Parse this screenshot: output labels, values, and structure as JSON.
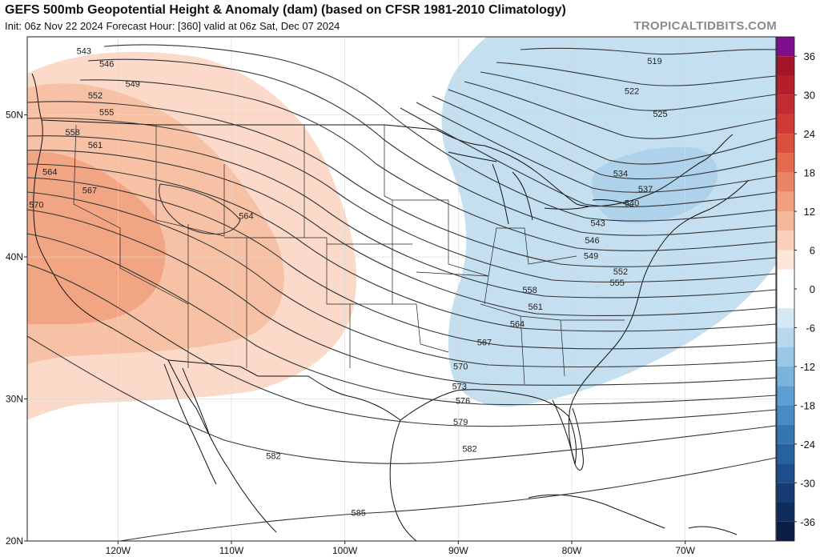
{
  "header": {
    "title": "GEFS 500mb Geopotential Height & Anomaly (dam) (based on CFSR 1981-2010 Climatology)",
    "subtitle": "Init: 06z Nov 22 2024   Forecast Hour: [360]   valid at 06z Sat, Dec 07 2024",
    "credit": "TROPICALTIDBITS.COM"
  },
  "map": {
    "lon_range": [
      -128,
      -62
    ],
    "lat_range": [
      20,
      55.5
    ],
    "lat_ticks": [
      {
        "label": "50N",
        "lat": 50
      },
      {
        "label": "40N",
        "lat": 40
      },
      {
        "label": "30N",
        "lat": 30
      },
      {
        "label": "20N",
        "lat": 20
      }
    ],
    "lon_ticks": [
      {
        "label": "120W",
        "lon": -120
      },
      {
        "label": "110W",
        "lon": -110
      },
      {
        "label": "100W",
        "lon": -100
      },
      {
        "label": "90W",
        "lon": -90
      },
      {
        "label": "80W",
        "lon": -80
      },
      {
        "label": "70W",
        "lon": -70
      }
    ],
    "contour_labels": [
      {
        "text": "543",
        "lon": -123.0,
        "lat": 54.5
      },
      {
        "text": "546",
        "lon": -121.0,
        "lat": 53.6
      },
      {
        "text": "549",
        "lon": -118.7,
        "lat": 52.2
      },
      {
        "text": "552",
        "lon": -122.0,
        "lat": 51.4
      },
      {
        "text": "555",
        "lon": -121.0,
        "lat": 50.2
      },
      {
        "text": "558",
        "lon": -124.0,
        "lat": 48.8
      },
      {
        "text": "561",
        "lon": -122.0,
        "lat": 47.9
      },
      {
        "text": "564",
        "lon": -126.0,
        "lat": 46.0
      },
      {
        "text": "567",
        "lon": -122.5,
        "lat": 44.7
      },
      {
        "text": "570",
        "lon": -127.2,
        "lat": 43.7
      },
      {
        "text": "564",
        "lon": -108.7,
        "lat": 42.9
      },
      {
        "text": "519",
        "lon": -72.7,
        "lat": 53.8
      },
      {
        "text": "522",
        "lon": -74.7,
        "lat": 51.7
      },
      {
        "text": "525",
        "lon": -72.2,
        "lat": 50.1
      },
      {
        "text": "534",
        "lon": -75.7,
        "lat": 45.9
      },
      {
        "text": "537",
        "lon": -73.5,
        "lat": 44.8
      },
      {
        "text": "540",
        "lon": -74.7,
        "lat": 43.8
      },
      {
        "text": "543",
        "lon": -77.7,
        "lat": 42.4
      },
      {
        "text": "546",
        "lon": -78.2,
        "lat": 41.2
      },
      {
        "text": "549",
        "lon": -78.3,
        "lat": 40.1
      },
      {
        "text": "552",
        "lon": -75.7,
        "lat": 39.0
      },
      {
        "text": "555",
        "lon": -76.0,
        "lat": 38.2
      },
      {
        "text": "558",
        "lon": -83.7,
        "lat": 37.7
      },
      {
        "text": "561",
        "lon": -83.2,
        "lat": 36.5
      },
      {
        "text": "564",
        "lon": -84.8,
        "lat": 35.3
      },
      {
        "text": "567",
        "lon": -87.7,
        "lat": 34.0
      },
      {
        "text": "570",
        "lon": -89.8,
        "lat": 32.3
      },
      {
        "text": "573",
        "lon": -89.9,
        "lat": 30.9
      },
      {
        "text": "576",
        "lon": -89.6,
        "lat": 29.9
      },
      {
        "text": "579",
        "lon": -89.8,
        "lat": 28.4
      },
      {
        "text": "582",
        "lon": -89.0,
        "lat": 26.5
      },
      {
        "text": "582",
        "lon": -106.3,
        "lat": 26.0
      },
      {
        "text": "585",
        "lon": -98.8,
        "lat": 22.0
      }
    ]
  },
  "colorbar": {
    "labels": [
      {
        "text": "36",
        "value": 36
      },
      {
        "text": "30",
        "value": 30
      },
      {
        "text": "24",
        "value": 24
      },
      {
        "text": "18",
        "value": 18
      },
      {
        "text": "12",
        "value": 12
      },
      {
        "text": "6",
        "value": 6
      },
      {
        "text": "0",
        "value": 0
      },
      {
        "text": "-6",
        "value": -6
      },
      {
        "text": "-12",
        "value": -12
      },
      {
        "text": "-18",
        "value": -18
      },
      {
        "text": "-24",
        "value": -24
      },
      {
        "text": "-30",
        "value": -30
      },
      {
        "text": "-36",
        "value": -36
      }
    ],
    "colors": [
      {
        "from": 36,
        "to": 39,
        "color": "#7f0e8c"
      },
      {
        "from": 33,
        "to": 36,
        "color": "#a3162a"
      },
      {
        "from": 30,
        "to": 33,
        "color": "#b51f2c"
      },
      {
        "from": 27,
        "to": 30,
        "color": "#c22b30"
      },
      {
        "from": 24,
        "to": 27,
        "color": "#cf3a36"
      },
      {
        "from": 21,
        "to": 24,
        "color": "#d9503f"
      },
      {
        "from": 18,
        "to": 21,
        "color": "#e16a4f"
      },
      {
        "from": 15,
        "to": 18,
        "color": "#e98566"
      },
      {
        "from": 12,
        "to": 15,
        "color": "#f0a080"
      },
      {
        "from": 9,
        "to": 12,
        "color": "#f5b89c"
      },
      {
        "from": 6,
        "to": 9,
        "color": "#f9d0bb"
      },
      {
        "from": 3,
        "to": 6,
        "color": "#fce6d9"
      },
      {
        "from": -3,
        "to": 3,
        "color": "#ffffff"
      },
      {
        "from": -6,
        "to": -3,
        "color": "#d5e8f4"
      },
      {
        "from": -9,
        "to": -6,
        "color": "#b8d8ee"
      },
      {
        "from": -12,
        "to": -9,
        "color": "#9ac7e6"
      },
      {
        "from": -15,
        "to": -12,
        "color": "#7ab3dc"
      },
      {
        "from": -18,
        "to": -15,
        "color": "#5d9fd1"
      },
      {
        "from": -21,
        "to": -18,
        "color": "#478ac4"
      },
      {
        "from": -24,
        "to": -21,
        "color": "#3575b3"
      },
      {
        "from": -27,
        "to": -24,
        "color": "#2761a0"
      },
      {
        "from": -30,
        "to": -27,
        "color": "#1d4d8a"
      },
      {
        "from": -33,
        "to": -30,
        "color": "#163b72"
      },
      {
        "from": -36,
        "to": -33,
        "color": "#0f2b5b"
      },
      {
        "from": -39,
        "to": -36,
        "color": "#0b1d45"
      }
    ]
  },
  "colors": {
    "warm_light": "#fbdac9",
    "warm_mid": "#f7c1a6",
    "warm_strong": "#f2a583",
    "cold_light": "#c4dff0",
    "cold_mid": "#aed2ea",
    "contour": "#333333",
    "border": "#111111",
    "gridline": "#d8d8d8"
  }
}
